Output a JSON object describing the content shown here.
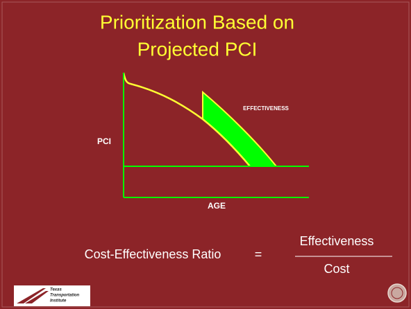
{
  "title": {
    "lines": [
      "Prioritization Based on",
      "Projected PCI"
    ]
  },
  "diagram": {
    "y_axis_label": "PCI",
    "x_axis_label": "AGE",
    "region_label": "EFFECTIVENESS"
  },
  "formula": {
    "left": "Cost-Effectiveness Ratio",
    "equals": "=",
    "numerator": "Effectiveness",
    "denominator": "Cost"
  },
  "logo": {
    "lines": [
      "Texas",
      "Transportation",
      "Institute"
    ]
  }
}
